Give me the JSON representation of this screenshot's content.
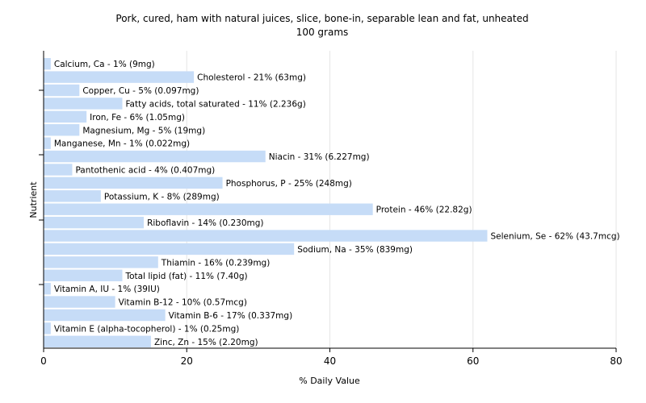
{
  "chart_data": {
    "type": "bar",
    "orientation": "horizontal",
    "title": "Pork, cured, ham with natural juices, slice, bone-in, separable lean and fat, unheated",
    "subtitle": "100 grams",
    "xlabel": "% Daily Value",
    "ylabel": "Nutrient",
    "xlim": [
      0,
      80
    ],
    "xticks": [
      "0",
      "20",
      "40",
      "60",
      "80"
    ],
    "grid": true,
    "bar_color": "#c6dcf7",
    "categories": [
      "Calcium, Ca - 1% (9mg)",
      "Cholesterol - 21% (63mg)",
      "Copper, Cu - 5% (0.097mg)",
      "Fatty acids, total saturated - 11% (2.236g)",
      "Iron, Fe - 6% (1.05mg)",
      "Magnesium, Mg - 5% (19mg)",
      "Manganese, Mn - 1% (0.022mg)",
      "Niacin - 31% (6.227mg)",
      "Pantothenic acid - 4% (0.407mg)",
      "Phosphorus, P - 25% (248mg)",
      "Potassium, K - 8% (289mg)",
      "Protein - 46% (22.82g)",
      "Riboflavin - 14% (0.230mg)",
      "Selenium, Se - 62% (43.7mcg)",
      "Sodium, Na - 35% (839mg)",
      "Thiamin - 16% (0.239mg)",
      "Total lipid (fat) - 11% (7.40g)",
      "Vitamin A, IU - 1% (39IU)",
      "Vitamin B-12 - 10% (0.57mcg)",
      "Vitamin B-6 - 17% (0.337mg)",
      "Vitamin E (alpha-tocopherol) - 1% (0.25mg)",
      "Zinc, Zn - 15% (2.20mg)"
    ],
    "values": [
      1,
      21,
      5,
      11,
      6,
      5,
      1,
      31,
      4,
      25,
      8,
      46,
      14,
      62,
      35,
      16,
      11,
      1,
      10,
      17,
      1,
      15
    ]
  }
}
